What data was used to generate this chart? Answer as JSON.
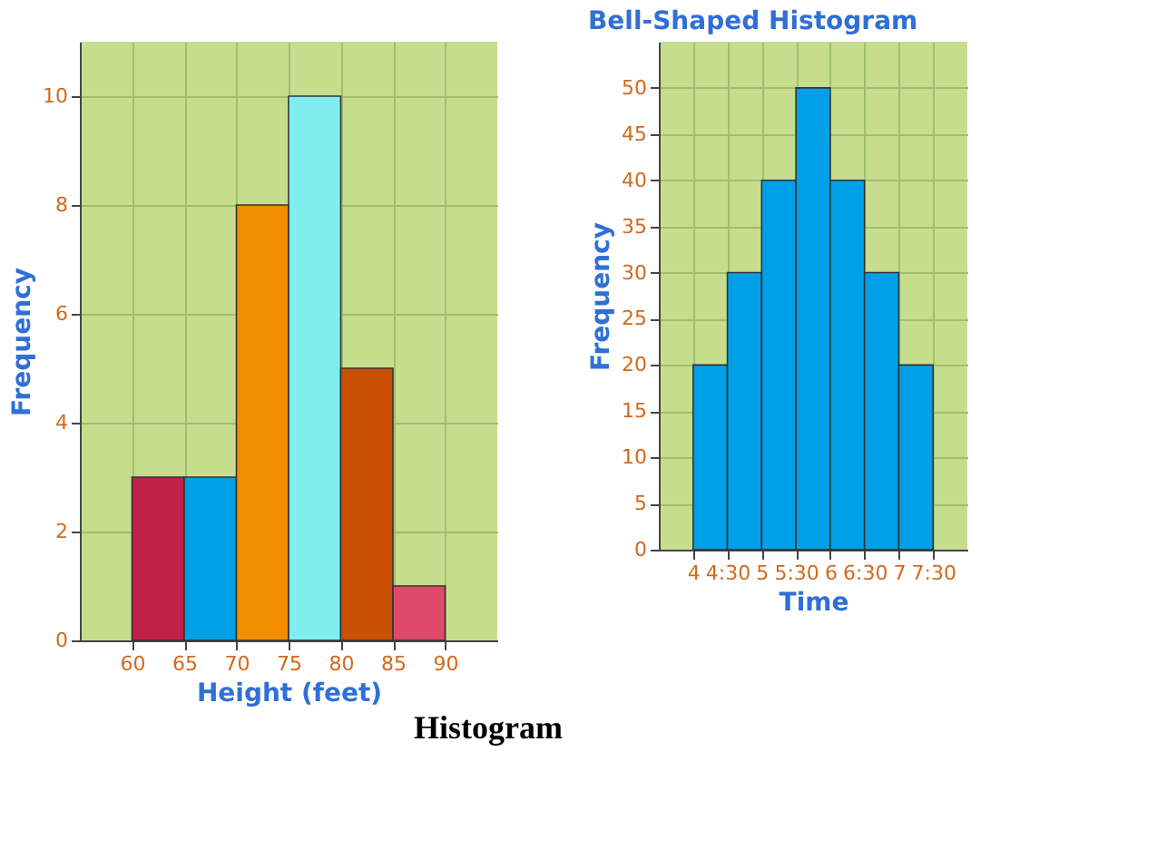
{
  "chart_data": [
    {
      "type": "histogram",
      "xlabel": "Height (feet)",
      "ylabel": "Frequency",
      "bins": [
        60,
        65,
        70,
        75,
        80,
        85,
        90
      ],
      "values": [
        3,
        3,
        8,
        10,
        5,
        1
      ],
      "colors": [
        "#c0224a",
        "#00a0e8",
        "#f28c00",
        "#80eef0",
        "#c85000",
        "#e04a6a"
      ],
      "xlim": [
        55,
        95
      ],
      "xticks": [
        60,
        65,
        70,
        75,
        80,
        85,
        90
      ],
      "ylim": [
        0,
        11
      ],
      "yticks": [
        0,
        2,
        4,
        6,
        8,
        10
      ],
      "grid": true,
      "annotations": [
        "Histogram"
      ]
    },
    {
      "type": "histogram",
      "title": "Bell-Shaped Histogram",
      "xlabel": "Time",
      "ylabel": "Frequency",
      "bins": [
        4,
        4.5,
        5,
        5.5,
        6,
        6.5,
        7,
        7.5
      ],
      "values": [
        20,
        30,
        40,
        50,
        40,
        30,
        20
      ],
      "colors": [
        "#00a0e8",
        "#00a0e8",
        "#00a0e8",
        "#00a0e8",
        "#00a0e8",
        "#00a0e8",
        "#00a0e8"
      ],
      "xlim": [
        3.5,
        8
      ],
      "xticks": [
        4,
        {
          "value": 4.5,
          "label": "4:30"
        },
        5,
        {
          "value": 5.5,
          "label": "5:30"
        },
        6,
        {
          "value": 6.5,
          "label": "6:30"
        },
        7,
        {
          "value": 7.5,
          "label": "7:30"
        }
      ],
      "ylim": [
        0,
        55
      ],
      "yticks": [
        0,
        5,
        10,
        15,
        20,
        25,
        30,
        35,
        40,
        45,
        50
      ],
      "grid": true
    }
  ]
}
